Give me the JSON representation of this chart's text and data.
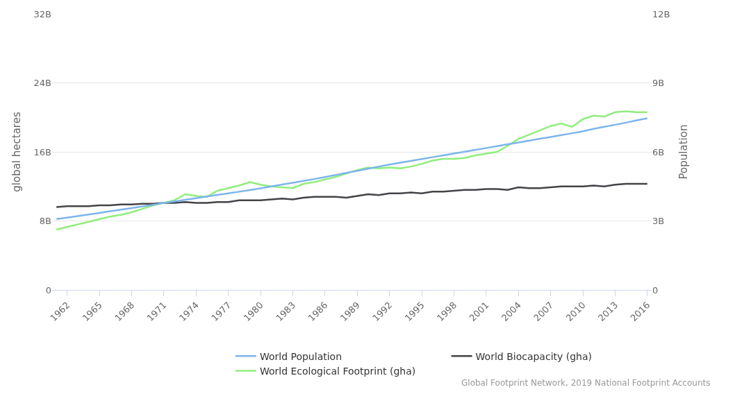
{
  "chart_data": {
    "type": "line",
    "ylabel": "global hectares",
    "y2label": "Population",
    "x": [
      1961,
      1962,
      1963,
      1964,
      1965,
      1966,
      1967,
      1968,
      1969,
      1970,
      1971,
      1972,
      1973,
      1974,
      1975,
      1976,
      1977,
      1978,
      1979,
      1980,
      1981,
      1982,
      1983,
      1984,
      1985,
      1986,
      1987,
      1988,
      1989,
      1990,
      1991,
      1992,
      1993,
      1994,
      1995,
      1996,
      1997,
      1998,
      1999,
      2000,
      2001,
      2002,
      2003,
      2004,
      2005,
      2006,
      2007,
      2008,
      2009,
      2010,
      2011,
      2012,
      2013,
      2014,
      2015,
      2016
    ],
    "xlim": [
      1960.6,
      2016.4
    ],
    "xticks": [
      1962,
      1965,
      1968,
      1971,
      1974,
      1977,
      1980,
      1983,
      1986,
      1989,
      1992,
      1995,
      1998,
      2001,
      2004,
      2007,
      2010,
      2013,
      2016
    ],
    "ylim": [
      0,
      32
    ],
    "yticks": [
      {
        "value": 0,
        "label": "0"
      },
      {
        "value": 8,
        "label": "8B"
      },
      {
        "value": 16,
        "label": "16B"
      },
      {
        "value": 24,
        "label": "24B"
      },
      {
        "value": 32,
        "label": "32B"
      }
    ],
    "y2lim": [
      0,
      12
    ],
    "y2ticks": [
      {
        "value": 0,
        "label": "0"
      },
      {
        "value": 3,
        "label": "3B"
      },
      {
        "value": 6,
        "label": "6B"
      },
      {
        "value": 9,
        "label": "9B"
      },
      {
        "value": 12,
        "label": "12B"
      }
    ],
    "series": [
      {
        "name": "World Population",
        "color": "#7cb5ec",
        "axis": "y2",
        "values": [
          3.08,
          3.14,
          3.21,
          3.28,
          3.35,
          3.42,
          3.49,
          3.56,
          3.63,
          3.7,
          3.78,
          3.85,
          3.92,
          3.99,
          4.06,
          4.13,
          4.2,
          4.27,
          4.34,
          4.42,
          4.5,
          4.58,
          4.66,
          4.74,
          4.82,
          4.91,
          5.0,
          5.09,
          5.18,
          5.27,
          5.36,
          5.45,
          5.53,
          5.61,
          5.69,
          5.77,
          5.85,
          5.93,
          6.01,
          6.09,
          6.17,
          6.25,
          6.33,
          6.41,
          6.49,
          6.57,
          6.65,
          6.73,
          6.81,
          6.9,
          7.0,
          7.09,
          7.18,
          7.27,
          7.37,
          7.46
        ]
      },
      {
        "name": "World Biocapacity (gha)",
        "color": "#434348",
        "values": [
          9.6,
          9.7,
          9.7,
          9.7,
          9.8,
          9.8,
          9.9,
          9.9,
          10.0,
          10.0,
          10.1,
          10.1,
          10.2,
          10.1,
          10.1,
          10.2,
          10.2,
          10.4,
          10.4,
          10.4,
          10.5,
          10.6,
          10.5,
          10.7,
          10.8,
          10.8,
          10.8,
          10.7,
          10.9,
          11.1,
          11.0,
          11.2,
          11.2,
          11.3,
          11.2,
          11.4,
          11.4,
          11.5,
          11.6,
          11.6,
          11.7,
          11.7,
          11.6,
          11.9,
          11.8,
          11.8,
          11.9,
          12.0,
          12.0,
          12.0,
          12.1,
          12.0,
          12.2,
          12.3,
          12.3,
          12.3
        ]
      },
      {
        "name": "World Ecological Footprint (gha)",
        "color": "#90ed7d",
        "values": [
          7.0,
          7.3,
          7.6,
          7.9,
          8.2,
          8.5,
          8.7,
          9.0,
          9.4,
          9.8,
          10.1,
          10.4,
          11.1,
          10.9,
          10.8,
          11.5,
          11.8,
          12.1,
          12.5,
          12.2,
          12.0,
          11.9,
          11.8,
          12.3,
          12.5,
          12.8,
          13.1,
          13.5,
          13.9,
          14.2,
          14.1,
          14.2,
          14.1,
          14.3,
          14.6,
          15.0,
          15.2,
          15.2,
          15.3,
          15.6,
          15.8,
          16.0,
          16.7,
          17.5,
          18.0,
          18.5,
          19.0,
          19.3,
          18.9,
          19.8,
          20.2,
          20.1,
          20.6,
          20.7,
          20.6,
          20.6
        ]
      }
    ],
    "grid": "y",
    "legend": "bottom",
    "marker": "none",
    "line_style": "solid",
    "annotations": [
      "Global Footprint Network, 2019 National Footprint Accounts"
    ]
  }
}
